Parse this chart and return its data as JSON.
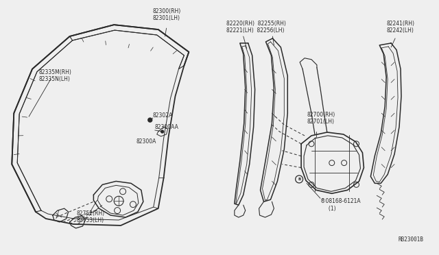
{
  "bg_color": "#efefef",
  "line_color": "#2a2a2a",
  "text_color": "#2a2a2a",
  "ref_code": "RB23001B",
  "font_size": 5.5,
  "labels": {
    "82300RH": "82300(RH)\n82301(LH)",
    "82335M": "82335M(RH)\n82335N(LH)",
    "82302A": "82302A",
    "82300AA": "82300AA",
    "82300A": "82300A",
    "82752": "82752(RH)\n82753(LH)",
    "82220": "82220(RH)  82255(RH)\n82221(LH)  82256(LH)",
    "82700": "82700(RH)\n82701(LH)",
    "82241": "82241(RH)\n82242(LH)",
    "08168": "®08168-6121A\n     (1)"
  }
}
